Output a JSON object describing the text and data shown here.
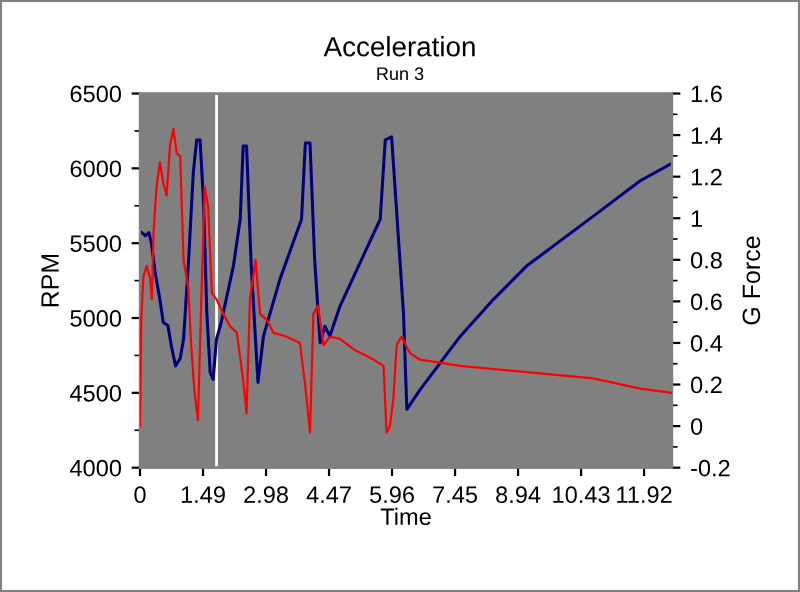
{
  "chart_data": {
    "type": "line",
    "title": "Acceleration",
    "subtitle": "Run 3",
    "xlabel": "Time",
    "ylabel": "RPM",
    "y2label": "G Force",
    "xlim": [
      0,
      12.58
    ],
    "xticks": [
      0,
      1.49,
      2.98,
      4.47,
      5.96,
      7.45,
      8.94,
      10.43,
      11.92
    ],
    "ylim": [
      4000,
      6500
    ],
    "yticks": [
      4000,
      4500,
      5000,
      5500,
      6000,
      6500
    ],
    "y2lim": [
      -0.2,
      1.6
    ],
    "y2ticks": [
      -0.2,
      0,
      0.2,
      0.4,
      0.6,
      0.8,
      1,
      1.2,
      1.4,
      1.6
    ],
    "grid": false,
    "legend": false,
    "marker": "none",
    "line_style": "solid",
    "ref_lines": [
      {
        "axis": "x",
        "value": 1.81,
        "color": "#ffffff"
      }
    ],
    "series": [
      {
        "color": "#000080",
        "x": [
          0,
          0.13,
          0.21,
          0.27,
          0.36,
          0.47,
          0.55,
          0.66,
          0.74,
          0.84,
          0.95,
          1.03,
          1.15,
          1.26,
          1.34,
          1.42,
          1.5,
          1.58,
          1.66,
          1.73,
          1.81,
          1.92,
          2.21,
          2.37,
          2.44,
          2.52,
          2.63,
          2.79,
          2.92,
          3.31,
          3.82,
          3.91,
          4.02,
          4.13,
          4.26,
          4.37,
          4.49,
          4.73,
          5.68,
          5.8,
          5.95,
          6.23,
          6.31,
          6.62,
          7.57,
          8.36,
          9.14,
          10.72,
          11.83,
          12.58
        ],
        "values": [
          5580,
          5550,
          5570,
          5500,
          5300,
          5125,
          4970,
          4950,
          4815,
          4680,
          4730,
          4860,
          5390,
          5970,
          6190,
          6190,
          5790,
          5035,
          4635,
          4590,
          4860,
          4970,
          5350,
          5660,
          6150,
          6150,
          5350,
          4570,
          4880,
          5260,
          5660,
          6170,
          6170,
          5390,
          4835,
          4945,
          4880,
          5080,
          5660,
          6190,
          6210,
          5035,
          4390,
          4520,
          4877,
          5125,
          5347,
          5681,
          5917,
          6035
        ]
      },
      {
        "color": "#ff0000",
        "axis": "y2",
        "x": [
          0,
          0.03,
          0.08,
          0.16,
          0.24,
          0.28,
          0.32,
          0.39,
          0.47,
          0.55,
          0.63,
          0.71,
          0.79,
          0.87,
          0.95,
          1.03,
          1.14,
          1.21,
          1.29,
          1.37,
          1.45,
          1.53,
          1.61,
          1.7,
          1.81,
          1.97,
          2.13,
          2.29,
          2.44,
          2.52,
          2.6,
          2.73,
          2.84,
          3.0,
          3.15,
          3.47,
          3.78,
          3.91,
          4.02,
          4.1,
          4.21,
          4.34,
          4.49,
          4.73,
          5.05,
          5.52,
          5.76,
          5.83,
          5.91,
          5.99,
          6.07,
          6.18,
          6.39,
          6.62,
          7.57,
          9.14,
          10.72,
          11.83,
          12.58
        ],
        "values": [
          0.0,
          0.51,
          0.72,
          0.77,
          0.71,
          0.61,
          0.93,
          1.15,
          1.27,
          1.17,
          1.11,
          1.35,
          1.43,
          1.31,
          1.3,
          0.8,
          0.67,
          0.39,
          0.16,
          0.03,
          0.61,
          1.15,
          1.06,
          0.64,
          0.61,
          0.54,
          0.48,
          0.45,
          0.22,
          0.06,
          0.61,
          0.8,
          0.54,
          0.51,
          0.45,
          0.43,
          0.4,
          0.19,
          -0.03,
          0.54,
          0.58,
          0.39,
          0.43,
          0.42,
          0.37,
          0.32,
          0.29,
          -0.03,
          0.0,
          0.13,
          0.39,
          0.43,
          0.35,
          0.32,
          0.29,
          0.26,
          0.23,
          0.18,
          0.16
        ]
      }
    ]
  }
}
